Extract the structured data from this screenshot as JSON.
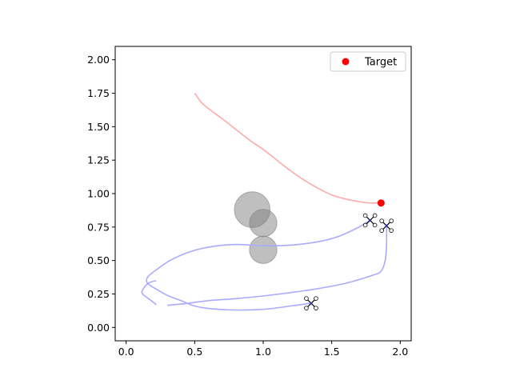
{
  "chart_data": {
    "type": "scatter",
    "title": "",
    "xlabel": "",
    "ylabel": "",
    "xlim": [
      -0.08,
      2.08
    ],
    "ylim": [
      -0.1,
      2.1
    ],
    "x_ticks": [
      0.0,
      0.5,
      1.0,
      1.5,
      2.0
    ],
    "x_tick_labels": [
      "0.0",
      "0.5",
      "1.0",
      "1.5",
      "2.0"
    ],
    "y_ticks": [
      0.0,
      0.25,
      0.5,
      0.75,
      1.0,
      1.25,
      1.5,
      1.75,
      2.0
    ],
    "y_tick_labels": [
      "0.00",
      "0.25",
      "0.50",
      "0.75",
      "1.00",
      "1.25",
      "1.50",
      "1.75",
      "2.00"
    ],
    "grid": false,
    "legend": {
      "position": "top-right",
      "entries": [
        {
          "label": "Target",
          "color": "#ff0000",
          "marker": "circle"
        }
      ]
    },
    "target": {
      "label": "Target",
      "x": 1.86,
      "y": 0.93,
      "color": "#ff0000"
    },
    "target_trajectory": {
      "color": "#ffaaaa",
      "points": [
        [
          0.5,
          1.75
        ],
        [
          0.55,
          1.68
        ],
        [
          0.62,
          1.62
        ],
        [
          0.7,
          1.56
        ],
        [
          0.8,
          1.48
        ],
        [
          0.9,
          1.4
        ],
        [
          1.0,
          1.33
        ],
        [
          1.1,
          1.25
        ],
        [
          1.2,
          1.17
        ],
        [
          1.3,
          1.1
        ],
        [
          1.4,
          1.04
        ],
        [
          1.5,
          0.99
        ],
        [
          1.6,
          0.96
        ],
        [
          1.7,
          0.94
        ],
        [
          1.78,
          0.93
        ],
        [
          1.86,
          0.93
        ]
      ]
    },
    "obstacles": [
      {
        "x": 0.92,
        "y": 0.88,
        "r": 0.13
      },
      {
        "x": 1.0,
        "y": 0.78,
        "r": 0.1
      },
      {
        "x": 1.0,
        "y": 0.58,
        "r": 0.1
      }
    ],
    "drone_paths": {
      "color": "#aaaaff",
      "paths": [
        [
          [
            1.78,
            0.8
          ],
          [
            1.68,
            0.74
          ],
          [
            1.55,
            0.68
          ],
          [
            1.4,
            0.64
          ],
          [
            1.2,
            0.615
          ],
          [
            1.0,
            0.61
          ],
          [
            0.8,
            0.62
          ],
          [
            0.6,
            0.6
          ],
          [
            0.45,
            0.56
          ],
          [
            0.32,
            0.5
          ],
          [
            0.22,
            0.43
          ],
          [
            0.16,
            0.38
          ],
          [
            0.15,
            0.34
          ],
          [
            0.18,
            0.31
          ],
          [
            0.23,
            0.28
          ],
          [
            0.3,
            0.24
          ],
          [
            0.4,
            0.2
          ],
          [
            0.5,
            0.16
          ],
          [
            0.62,
            0.14
          ],
          [
            0.8,
            0.13
          ],
          [
            1.0,
            0.135
          ],
          [
            1.2,
            0.16
          ],
          [
            1.34,
            0.18
          ]
        ],
        [
          [
            1.9,
            0.75
          ],
          [
            1.9,
            0.62
          ],
          [
            1.89,
            0.5
          ],
          [
            1.86,
            0.42
          ],
          [
            1.8,
            0.39
          ],
          [
            1.6,
            0.33
          ],
          [
            1.4,
            0.29
          ],
          [
            1.2,
            0.26
          ],
          [
            1.0,
            0.235
          ],
          [
            0.8,
            0.215
          ],
          [
            0.6,
            0.2
          ],
          [
            0.45,
            0.18
          ],
          [
            0.35,
            0.17
          ],
          [
            0.3,
            0.165
          ]
        ],
        [
          [
            0.22,
            0.17
          ],
          [
            0.17,
            0.21
          ],
          [
            0.12,
            0.25
          ],
          [
            0.12,
            0.28
          ],
          [
            0.16,
            0.33
          ],
          [
            0.22,
            0.35
          ]
        ]
      ]
    },
    "drones": [
      {
        "x": 1.78,
        "y": 0.8
      },
      {
        "x": 1.9,
        "y": 0.76
      },
      {
        "x": 1.35,
        "y": 0.18
      }
    ]
  }
}
